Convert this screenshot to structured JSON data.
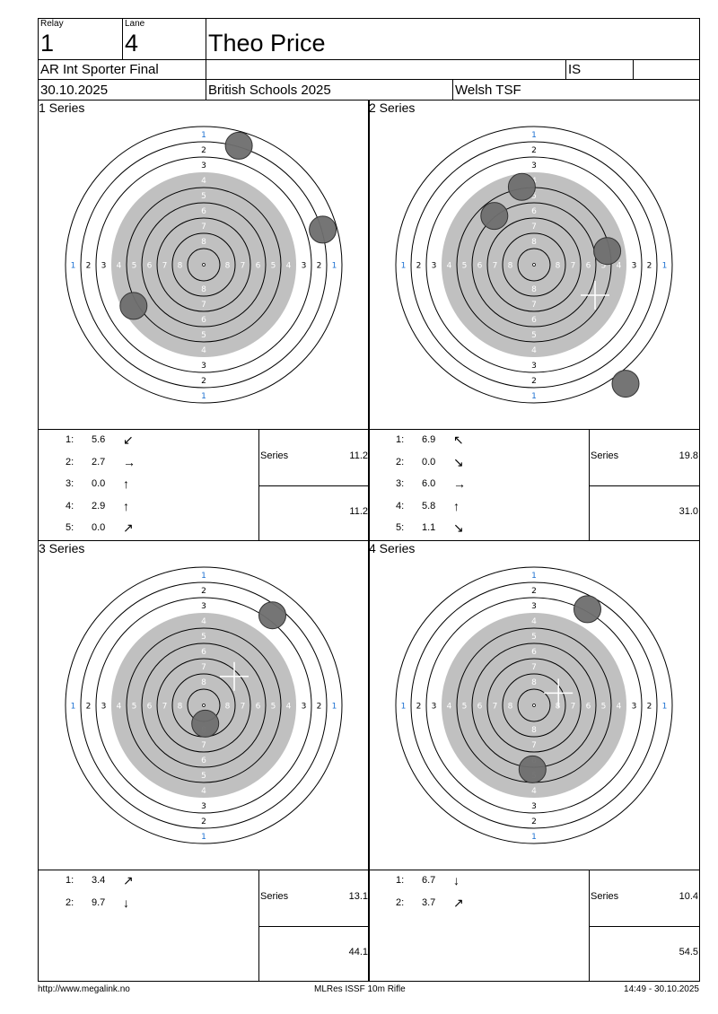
{
  "header": {
    "relay_label": "Relay",
    "relay": "1",
    "lane_label": "Lane",
    "lane": "4",
    "name": "Theo Price",
    "event": "AR Int Sporter Final",
    "class": "IS",
    "date": "30.10.2025",
    "competition": "British Schools 2025",
    "club": "Welsh TSF"
  },
  "colors": {
    "black_area": "#c0c0c0",
    "shot_hole": "#6e6e6e",
    "ring_line": "#000000",
    "ring1_label": "#1a6fd1"
  },
  "series": [
    {
      "title": "1 Series",
      "series_label": "Series",
      "series_total": "11.2",
      "running_total": "11.2",
      "shots": [
        {
          "n": "1:",
          "v": "5.6",
          "dir": "↙"
        },
        {
          "n": "2:",
          "v": "2.7",
          "dir": "→"
        },
        {
          "n": "3:",
          "v": "0.0",
          "dir": "↑"
        },
        {
          "n": "4:",
          "v": "2.9",
          "dir": "↑"
        },
        {
          "n": "5:",
          "v": "0.0",
          "dir": "↗"
        }
      ],
      "holes": [
        [
          2.3,
          7.8
        ],
        [
          7.8,
          2.3
        ],
        [
          -4.6,
          -2.7
        ]
      ],
      "cross": null
    },
    {
      "title": "2 Series",
      "series_label": "Series",
      "series_total": "19.8",
      "running_total": "31.0",
      "shots": [
        {
          "n": "1:",
          "v": "6.9",
          "dir": "↖"
        },
        {
          "n": "2:",
          "v": "0.0",
          "dir": "↘"
        },
        {
          "n": "3:",
          "v": "6.0",
          "dir": "→"
        },
        {
          "n": "4:",
          "v": "5.8",
          "dir": "↑"
        },
        {
          "n": "5:",
          "v": "1.1",
          "dir": "↘"
        }
      ],
      "holes": [
        [
          -0.8,
          5.1
        ],
        [
          -2.6,
          3.2
        ],
        [
          4.8,
          0.9
        ],
        [
          6.0,
          -7.8
        ]
      ],
      "cross": [
        4.0,
        -2.0
      ]
    },
    {
      "title": "3 Series",
      "series_label": "Series",
      "series_total": "13.1",
      "running_total": "44.1",
      "shots": [
        {
          "n": "1:",
          "v": "3.4",
          "dir": "↗"
        },
        {
          "n": "2:",
          "v": "9.7",
          "dir": "↓"
        }
      ],
      "holes": [
        [
          4.5,
          5.9
        ],
        [
          0.1,
          -1.2
        ]
      ],
      "cross": [
        2.0,
        1.9
      ]
    },
    {
      "title": "4 Series",
      "series_label": "Series",
      "series_total": "10.4",
      "running_total": "54.5",
      "shots": [
        {
          "n": "1:",
          "v": "6.7",
          "dir": "↓"
        },
        {
          "n": "2:",
          "v": "3.7",
          "dir": "↗"
        }
      ],
      "holes": [
        [
          3.5,
          6.3
        ],
        [
          -0.1,
          -4.2
        ]
      ],
      "cross": [
        1.6,
        0.8
      ]
    }
  ],
  "footer": {
    "url": "http://www.megalink.no",
    "program": "MLRes ISSF 10m Rifle",
    "timestamp": "14:49 - 30.10.2025"
  }
}
